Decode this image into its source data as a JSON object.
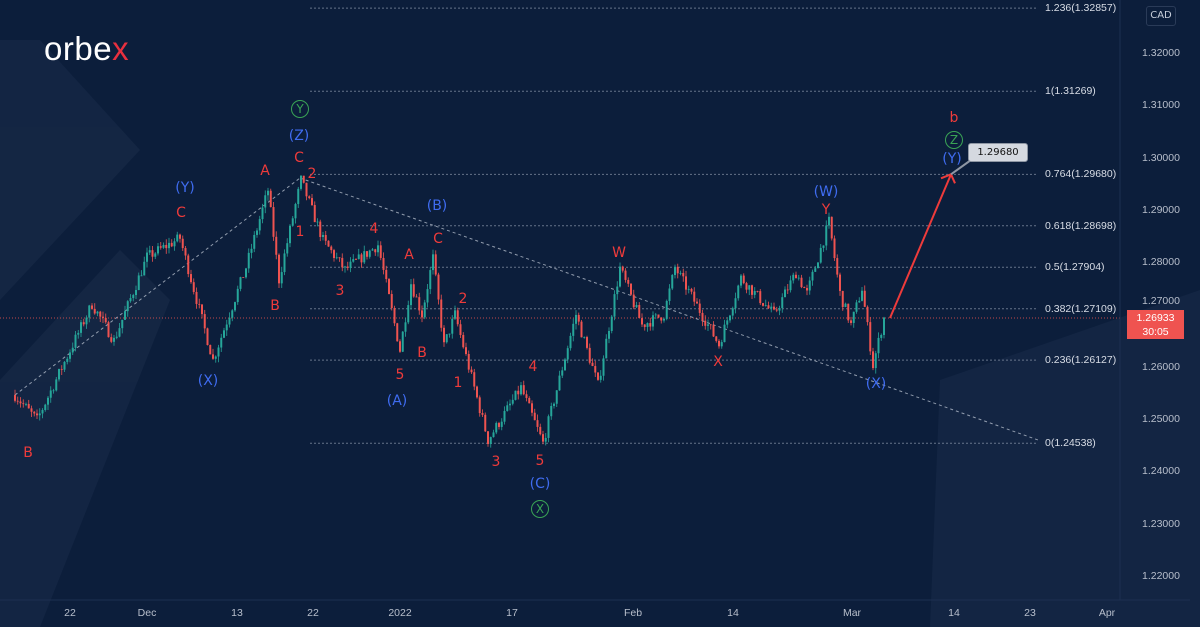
{
  "brand": {
    "logo_main": "orbe",
    "logo_accent": "x"
  },
  "currency": "CAD",
  "current_price": {
    "value": "1.26933",
    "countdown": "30:05",
    "color": "#ef5350"
  },
  "target_callout": "1.29680",
  "colors": {
    "background": "#0c1e3b",
    "up": "#26a69a",
    "down": "#ef5350",
    "wave_red": "#ee3b3b",
    "wave_blue": "#3f6cf0",
    "wave_green": "#3aa455"
  },
  "chart_data": {
    "type": "candlestick",
    "price_axis": {
      "ticks": [
        "1.32000",
        "1.31000",
        "1.30000",
        "1.29000",
        "1.28000",
        "1.27000",
        "1.26000",
        "1.25000",
        "1.24000",
        "1.23000",
        "1.22000"
      ],
      "range": [
        1.213,
        1.332
      ]
    },
    "time_axis": {
      "ticks": [
        "22",
        "Dec",
        "13",
        "22",
        "2022",
        "17",
        "Feb",
        "14",
        "Mar",
        "14",
        "23",
        "Apr"
      ]
    },
    "fib_levels": [
      {
        "label": "1.236(1.32857)",
        "price": 1.32857
      },
      {
        "label": "1(1.31269)",
        "price": 1.31269
      },
      {
        "label": "0.764(1.29680)",
        "price": 1.2968
      },
      {
        "label": "0.618(1.28698)",
        "price": 1.28698
      },
      {
        "label": "0.5(1.27904)",
        "price": 1.27904
      },
      {
        "label": "0.382(1.27109)",
        "price": 1.27109
      },
      {
        "label": "0.236(1.26127)",
        "price": 1.26127
      },
      {
        "label": "0(1.24538)",
        "price": 1.24538
      }
    ],
    "price_path": [
      {
        "date": "2021-11-15",
        "price": 1.2546
      },
      {
        "date": "2021-11-17",
        "price": 1.2498
      },
      {
        "date": "2021-11-24",
        "price": 1.272
      },
      {
        "date": "2021-11-26",
        "price": 1.265
      },
      {
        "date": "2021-12-01",
        "price": 1.281
      },
      {
        "date": "2021-12-06",
        "price": 1.2846
      },
      {
        "date": "2021-12-09",
        "price": 1.2613
      },
      {
        "date": "2021-12-14",
        "price": 1.279
      },
      {
        "date": "2021-12-16",
        "price": 1.2938
      },
      {
        "date": "2021-12-17",
        "price": 1.2766
      },
      {
        "date": "2021-12-21",
        "price": 1.2957
      },
      {
        "date": "2021-12-23",
        "price": 1.2842
      },
      {
        "date": "2021-12-27",
        "price": 1.2785
      },
      {
        "date": "2021-12-30",
        "price": 1.2833
      },
      {
        "date": "2022-01-03",
        "price": 1.2632
      },
      {
        "date": "2022-01-04",
        "price": 1.276
      },
      {
        "date": "2022-01-05",
        "price": 1.27
      },
      {
        "date": "2022-01-06",
        "price": 1.2808
      },
      {
        "date": "2022-01-07",
        "price": 1.264
      },
      {
        "date": "2022-01-10",
        "price": 1.27
      },
      {
        "date": "2022-01-11",
        "price": 1.262
      },
      {
        "date": "2022-01-13",
        "price": 1.246
      },
      {
        "date": "2022-01-18",
        "price": 1.256
      },
      {
        "date": "2022-01-20",
        "price": 1.2454
      },
      {
        "date": "2022-01-25",
        "price": 1.27
      },
      {
        "date": "2022-01-27",
        "price": 1.2565
      },
      {
        "date": "2022-01-31",
        "price": 1.2789
      },
      {
        "date": "2022-02-02",
        "price": 1.268
      },
      {
        "date": "2022-02-04",
        "price": 1.27
      },
      {
        "date": "2022-02-07",
        "price": 1.279
      },
      {
        "date": "2022-02-10",
        "price": 1.268
      },
      {
        "date": "2022-02-11",
        "price": 1.2642
      },
      {
        "date": "2022-02-15",
        "price": 1.277
      },
      {
        "date": "2022-02-18",
        "price": 1.27
      },
      {
        "date": "2022-02-22",
        "price": 1.278
      },
      {
        "date": "2022-02-23",
        "price": 1.274
      },
      {
        "date": "2022-02-25",
        "price": 1.2877
      },
      {
        "date": "2022-02-28",
        "price": 1.274
      },
      {
        "date": "2022-03-01",
        "price": 1.268
      },
      {
        "date": "2022-03-02",
        "price": 1.275
      },
      {
        "date": "2022-03-03",
        "price": 1.2603
      },
      {
        "date": "2022-03-04",
        "price": 1.26933
      }
    ],
    "projection": {
      "from": {
        "date": "2022-03-04",
        "price": 1.26933
      },
      "to": {
        "date": "2022-03-14",
        "price": 1.2968
      }
    }
  },
  "wave_labels": [
    {
      "text": "B",
      "color": "red"
    },
    {
      "text": "C",
      "color": "red"
    },
    {
      "text": "A",
      "color": "red"
    },
    {
      "text": "B",
      "color": "red"
    },
    {
      "text": "C",
      "color": "red"
    },
    {
      "text": "2",
      "color": "red"
    },
    {
      "text": "1",
      "color": "red"
    },
    {
      "text": "4",
      "color": "red"
    },
    {
      "text": "3",
      "color": "red"
    },
    {
      "text": "A",
      "color": "red"
    },
    {
      "text": "C",
      "color": "red"
    },
    {
      "text": "2",
      "color": "red"
    },
    {
      "text": "5",
      "color": "red"
    },
    {
      "text": "B",
      "color": "red"
    },
    {
      "text": "1",
      "color": "red"
    },
    {
      "text": "4",
      "color": "red"
    },
    {
      "text": "3",
      "color": "red"
    },
    {
      "text": "5",
      "color": "red"
    },
    {
      "text": "W",
      "color": "red"
    },
    {
      "text": "X",
      "color": "red"
    },
    {
      "text": "Y",
      "color": "red"
    },
    {
      "text": "b",
      "color": "red"
    },
    {
      "text": "(Y)",
      "color": "blue"
    },
    {
      "text": "(Z)",
      "color": "blue"
    },
    {
      "text": "(X)",
      "color": "blue"
    },
    {
      "text": "(B)",
      "color": "blue"
    },
    {
      "text": "(A)",
      "color": "blue"
    },
    {
      "text": "(C)",
      "color": "blue"
    },
    {
      "text": "(W)",
      "color": "blue"
    },
    {
      "text": "(X)",
      "color": "blue"
    },
    {
      "text": "(Y)",
      "color": "blue"
    },
    {
      "text": "Y",
      "color": "green"
    },
    {
      "text": "X",
      "color": "green"
    },
    {
      "text": "Z",
      "color": "green"
    }
  ]
}
